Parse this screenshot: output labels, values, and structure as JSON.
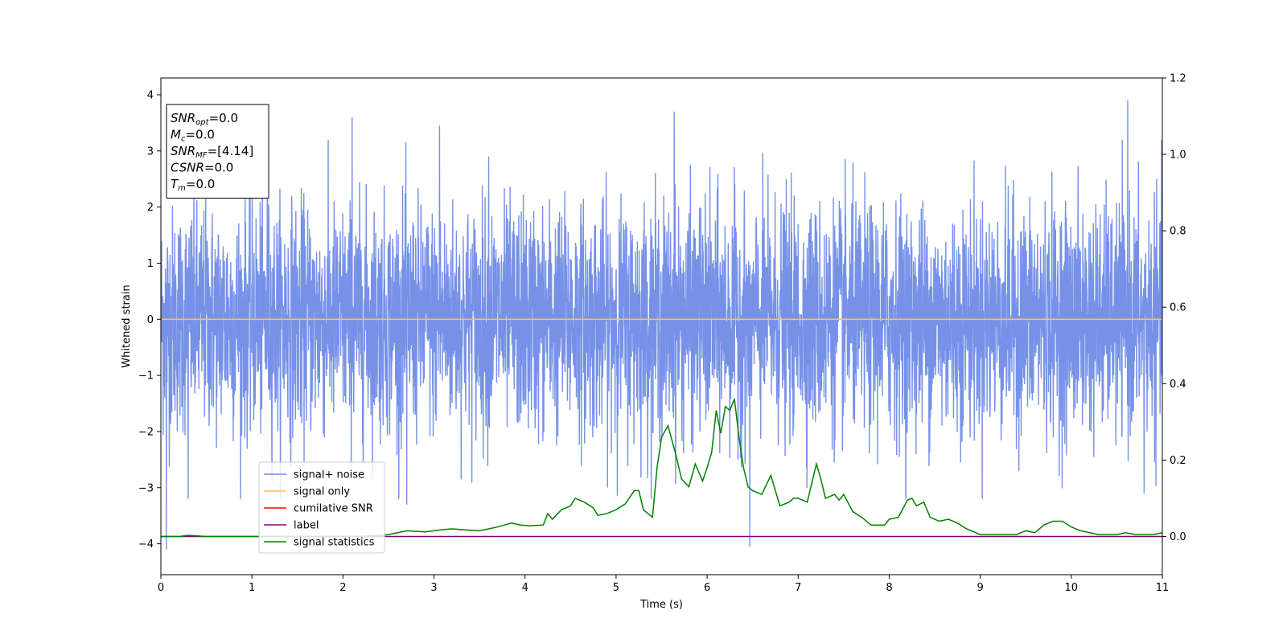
{
  "chart_data": {
    "type": "line",
    "xlabel": "Time (s)",
    "ylabel": "Whitened strain",
    "xlim": [
      0,
      11
    ],
    "ylim": [
      -4.55,
      4.3
    ],
    "y2lim": [
      -0.1,
      1.2
    ],
    "x_ticks": [
      "0",
      "1",
      "2",
      "3",
      "4",
      "5",
      "6",
      "7",
      "8",
      "9",
      "10",
      "11"
    ],
    "y_ticks": [
      "4",
      "3",
      "2",
      "1",
      "0",
      "−1",
      "−2",
      "−3",
      "−4"
    ],
    "y2_ticks": [
      "1.2",
      "1.0",
      "0.8",
      "0.6",
      "0.4",
      "0.2",
      "0.0"
    ],
    "info_box": [
      {
        "base": "SNR",
        "sub": "opt",
        "rest": "=0.0"
      },
      {
        "base": "M",
        "sub": "c",
        "rest": "=0.0"
      },
      {
        "base": "SNR",
        "sub": "MF",
        "rest": "=[4.14]"
      },
      {
        "base": "CSNR",
        "sub": "",
        "rest": "=0.0"
      },
      {
        "base": "T",
        "sub": "m",
        "rest": "=0.0"
      }
    ],
    "legend": {
      "placement": "lower-left",
      "entries": [
        {
          "label": "signal+ noise",
          "color": "#6f8be6"
        },
        {
          "label": "signal only",
          "color": "#ffc44d"
        },
        {
          "label": "cumilative SNR",
          "color": "#ff0000"
        },
        {
          "label": "label",
          "color": "#800080"
        },
        {
          "label": "signal statistics",
          "color": "#008000"
        }
      ]
    },
    "series": [
      {
        "name": "signal+ noise",
        "axis": "left",
        "color": "#6f8be6",
        "kind": "noise",
        "note_range": [
          -4.1,
          3.9
        ],
        "peaks": [
          {
            "x": 0.06,
            "y": -4.1
          },
          {
            "x": 0.3,
            "y": -3.2
          },
          {
            "x": 1.17,
            "y": 3.55
          },
          {
            "x": 2.1,
            "y": 3.6
          },
          {
            "x": 2.7,
            "y": -3.3
          },
          {
            "x": 3.06,
            "y": 3.45
          },
          {
            "x": 3.6,
            "y": 2.9
          },
          {
            "x": 5.64,
            "y": 3.7
          },
          {
            "x": 6.47,
            "y": -4.05
          },
          {
            "x": 10.62,
            "y": 3.9
          },
          {
            "x": 10.8,
            "y": -3.1
          }
        ]
      },
      {
        "name": "signal only",
        "axis": "left",
        "color": "#ffc44d",
        "x": [
          0,
          11
        ],
        "y": [
          0,
          0
        ]
      },
      {
        "name": "label",
        "axis": "right",
        "color": "#800080",
        "x": [
          0,
          11
        ],
        "y": [
          0,
          0
        ]
      },
      {
        "name": "signal statistics",
        "axis": "right",
        "color": "#008000",
        "x": [
          0,
          0.2,
          0.3,
          0.5,
          1.0,
          1.5,
          2.0,
          2.2,
          2.5,
          2.7,
          2.9,
          3.0,
          3.1,
          3.2,
          3.3,
          3.5,
          3.7,
          3.85,
          3.95,
          4.05,
          4.2,
          4.25,
          4.3,
          4.4,
          4.5,
          4.55,
          4.65,
          4.75,
          4.8,
          4.9,
          5.0,
          5.1,
          5.2,
          5.25,
          5.3,
          5.4,
          5.45,
          5.5,
          5.57,
          5.65,
          5.72,
          5.8,
          5.87,
          5.95,
          6.0,
          6.05,
          6.1,
          6.15,
          6.2,
          6.25,
          6.3,
          6.35,
          6.4,
          6.45,
          6.5,
          6.6,
          6.7,
          6.8,
          6.9,
          6.95,
          7.0,
          7.1,
          7.2,
          7.25,
          7.3,
          7.4,
          7.45,
          7.5,
          7.6,
          7.7,
          7.8,
          7.95,
          8.0,
          8.1,
          8.2,
          8.25,
          8.3,
          8.38,
          8.45,
          8.55,
          8.65,
          8.75,
          8.85,
          8.95,
          9.0,
          9.2,
          9.4,
          9.5,
          9.6,
          9.7,
          9.8,
          9.9,
          10.0,
          10.1,
          10.3,
          10.5,
          10.6,
          10.7,
          10.9,
          11.0
        ],
        "y": [
          0.0,
          0.0,
          0.003,
          0.0,
          0.0,
          0.0,
          0.0,
          0.0,
          0.005,
          0.015,
          0.012,
          0.015,
          0.018,
          0.02,
          0.018,
          0.015,
          0.025,
          0.035,
          0.03,
          0.028,
          0.03,
          0.06,
          0.045,
          0.07,
          0.08,
          0.1,
          0.09,
          0.075,
          0.055,
          0.06,
          0.07,
          0.085,
          0.12,
          0.12,
          0.07,
          0.05,
          0.18,
          0.26,
          0.29,
          0.22,
          0.15,
          0.13,
          0.19,
          0.145,
          0.18,
          0.22,
          0.33,
          0.27,
          0.34,
          0.33,
          0.36,
          0.26,
          0.18,
          0.13,
          0.12,
          0.11,
          0.16,
          0.08,
          0.09,
          0.1,
          0.1,
          0.09,
          0.19,
          0.15,
          0.1,
          0.11,
          0.095,
          0.11,
          0.065,
          0.05,
          0.03,
          0.03,
          0.045,
          0.05,
          0.095,
          0.1,
          0.08,
          0.09,
          0.05,
          0.04,
          0.045,
          0.035,
          0.02,
          0.01,
          0.005,
          0.005,
          0.005,
          0.015,
          0.01,
          0.03,
          0.04,
          0.04,
          0.025,
          0.015,
          0.005,
          0.005,
          0.01,
          0.005,
          0.005,
          0.01
        ]
      }
    ]
  }
}
